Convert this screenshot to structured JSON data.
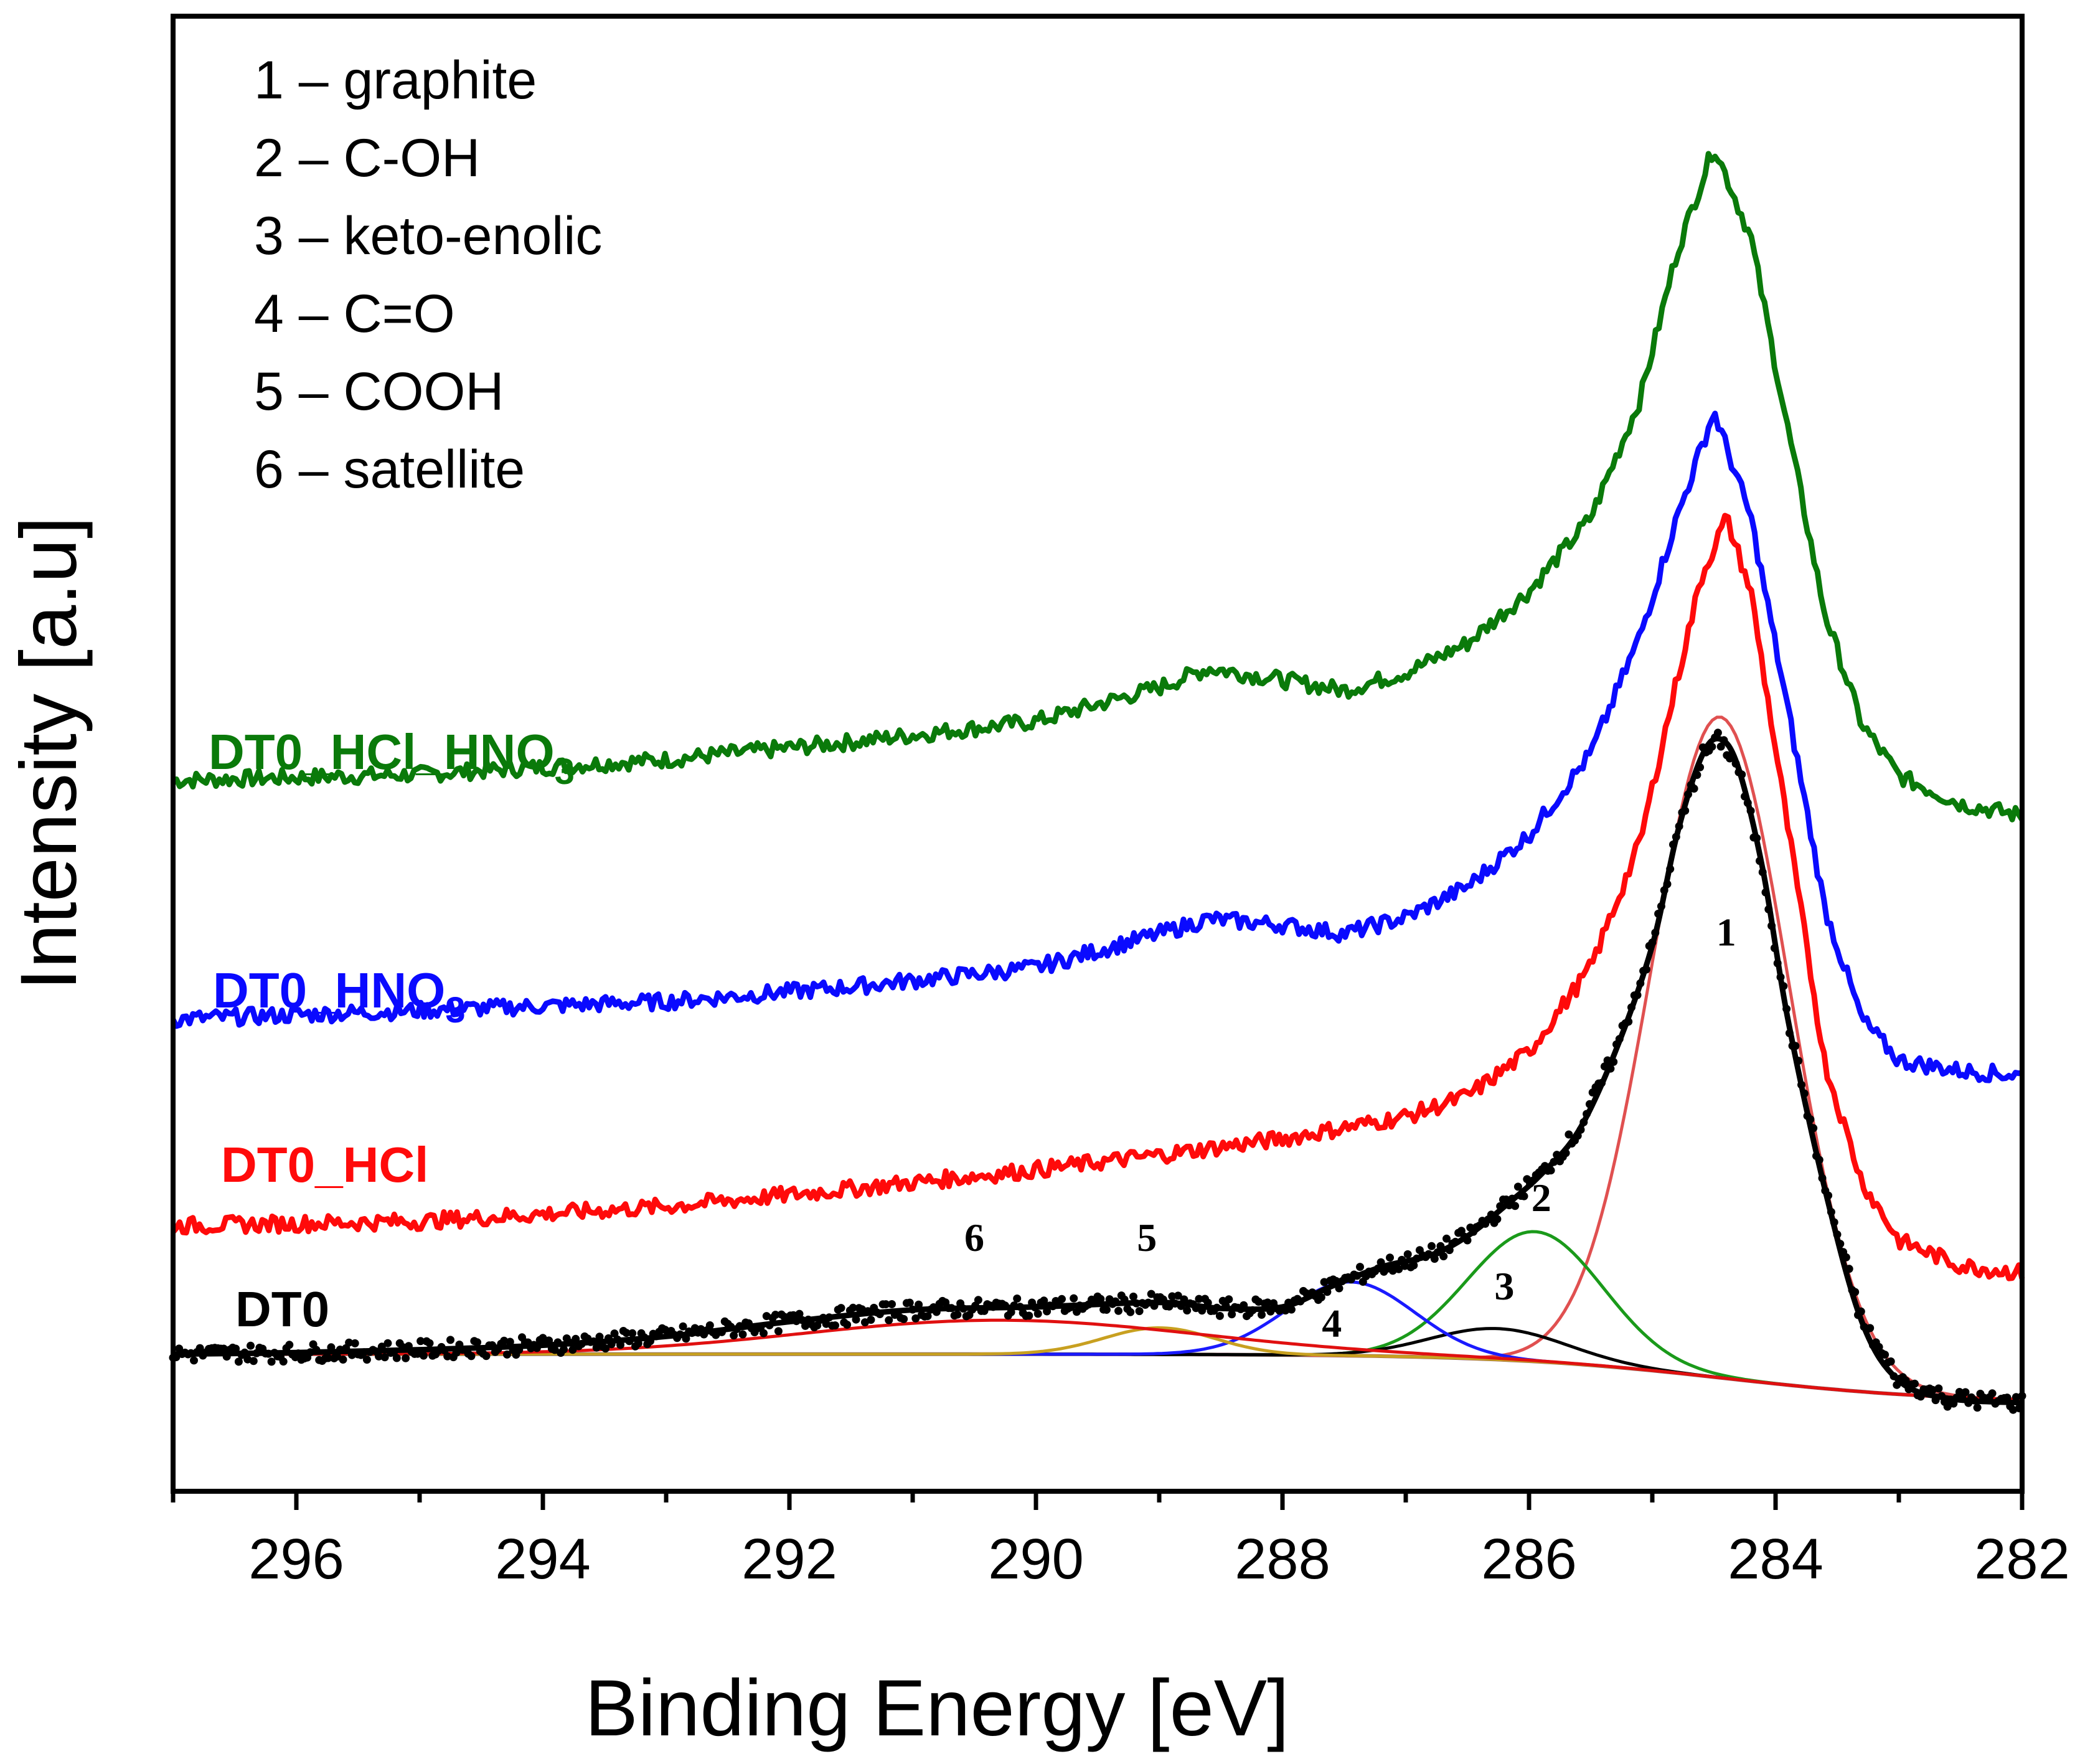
{
  "chart_data": {
    "type": "line",
    "title": "",
    "xlabel": "Binding Energy [eV]",
    "ylabel": "Intensity [a.u]",
    "xlim": [
      297,
      282
    ],
    "ylim": [
      0,
      100
    ],
    "x_reversed": true,
    "x_ticks": [
      "296",
      "294",
      "292",
      "290",
      "288",
      "286",
      "284",
      "282"
    ],
    "x_tick_values": [
      296,
      294,
      292,
      290,
      288,
      286,
      284,
      282
    ],
    "legend_position": "top-left",
    "legend": [
      {
        "num": "1",
        "sep": "–",
        "label": "graphite"
      },
      {
        "num": "2",
        "sep": "–",
        "label": "C-OH"
      },
      {
        "num": "3",
        "sep": "–",
        "label": "keto-enolic"
      },
      {
        "num": "4",
        "sep": "–",
        "label": "C=O"
      },
      {
        "num": "5",
        "sep": "–",
        "label": "COOH"
      },
      {
        "num": "6",
        "sep": "–",
        "label": "satellite"
      }
    ],
    "series": [
      {
        "name": "DT0_HCl_HNO3",
        "label_base": "DT0_HCl_HNO",
        "label_sub": "3",
        "color": "#0a7a0a",
        "points": [
          [
            297,
            48.2
          ],
          [
            295,
            48.6
          ],
          [
            293,
            49.6
          ],
          [
            291.5,
            50.8
          ],
          [
            290,
            52.2
          ],
          [
            289,
            54.5
          ],
          [
            288.6,
            55.8
          ],
          [
            288,
            55.0
          ],
          [
            287.5,
            54.3
          ],
          [
            287,
            55.5
          ],
          [
            286.5,
            57.5
          ],
          [
            286,
            61.0
          ],
          [
            285.5,
            66.0
          ],
          [
            285.1,
            74.0
          ],
          [
            284.8,
            84.0
          ],
          [
            284.5,
            91.2
          ],
          [
            284.2,
            85.0
          ],
          [
            283.9,
            72.0
          ],
          [
            283.6,
            59.5
          ],
          [
            283.3,
            52.0
          ],
          [
            283.0,
            48.5
          ],
          [
            282.5,
            46.6
          ],
          [
            282,
            45.8
          ]
        ]
      },
      {
        "name": "DT0_HNO3",
        "label_base": "DT0_HNO",
        "label_sub": "3",
        "color": "#0a0aff",
        "points": [
          [
            297,
            32.0
          ],
          [
            295,
            32.6
          ],
          [
            293,
            33.2
          ],
          [
            291.5,
            34.2
          ],
          [
            290,
            35.5
          ],
          [
            289,
            37.8
          ],
          [
            288.6,
            38.8
          ],
          [
            288,
            38.4
          ],
          [
            287.5,
            37.8
          ],
          [
            287,
            38.9
          ],
          [
            286.5,
            41.0
          ],
          [
            286,
            44.5
          ],
          [
            285.5,
            50.0
          ],
          [
            285.1,
            58.0
          ],
          [
            284.8,
            66.0
          ],
          [
            284.5,
            73.2
          ],
          [
            284.2,
            66.0
          ],
          [
            283.9,
            53.0
          ],
          [
            283.6,
            39.5
          ],
          [
            283.3,
            32.0
          ],
          [
            283.0,
            29.2
          ],
          [
            282.5,
            28.5
          ],
          [
            282,
            28.2
          ]
        ]
      },
      {
        "name": "DT0_HCl",
        "label_base": "DT0_HCl",
        "label_sub": "",
        "color": "#ff0a0a",
        "points": [
          [
            297,
            18.0
          ],
          [
            295,
            18.3
          ],
          [
            293,
            19.3
          ],
          [
            291.5,
            20.5
          ],
          [
            290,
            21.8
          ],
          [
            289,
            22.8
          ],
          [
            288,
            23.9
          ],
          [
            287,
            25.4
          ],
          [
            286.5,
            26.8
          ],
          [
            286,
            29.8
          ],
          [
            285.5,
            35.5
          ],
          [
            285.1,
            44.0
          ],
          [
            284.8,
            55.0
          ],
          [
            284.6,
            62.0
          ],
          [
            284.4,
            66.0
          ],
          [
            284.2,
            61.0
          ],
          [
            283.9,
            45.0
          ],
          [
            283.6,
            29.0
          ],
          [
            283.3,
            21.0
          ],
          [
            283.0,
            17.0
          ],
          [
            282.5,
            15.3
          ],
          [
            282,
            14.8
          ]
        ]
      },
      {
        "name": "DT0",
        "label_base": "DT0",
        "label_sub": "",
        "color": "#000000",
        "points": [
          [
            297,
            9.3
          ],
          [
            296,
            9.4
          ],
          [
            295,
            9.6
          ],
          [
            294,
            9.9
          ],
          [
            293,
            10.5
          ],
          [
            292,
            11.5
          ],
          [
            291,
            12.3
          ],
          [
            290,
            12.5
          ],
          [
            289,
            12.8
          ],
          [
            288.5,
            12.4
          ],
          [
            288,
            12.5
          ],
          [
            287.6,
            13.9
          ],
          [
            287.2,
            15.2
          ],
          [
            286.8,
            16.0
          ],
          [
            286.5,
            17.3
          ],
          [
            286.2,
            19.3
          ],
          [
            285.9,
            21.5
          ],
          [
            285.6,
            24.4
          ],
          [
            285.3,
            29.8
          ],
          [
            285.0,
            37.0
          ],
          [
            284.8,
            44.5
          ],
          [
            284.6,
            49.8
          ],
          [
            284.45,
            51.0
          ],
          [
            284.3,
            49.0
          ],
          [
            284.1,
            42.0
          ],
          [
            283.9,
            32.0
          ],
          [
            283.6,
            20.5
          ],
          [
            283.3,
            11.5
          ],
          [
            283.0,
            7.5
          ],
          [
            282.6,
            6.3
          ],
          [
            282,
            6.0
          ]
        ]
      }
    ],
    "components": [
      {
        "id": "1",
        "name": "graphite",
        "center": 284.45,
        "height": 44.8,
        "sigma": 0.56,
        "color": "#e05050"
      },
      {
        "id": "2",
        "name": "C-OH",
        "center": 285.95,
        "height": 8.8,
        "sigma": 0.55,
        "color": "#1a9a1a"
      },
      {
        "id": "3",
        "name": "keto-enolic",
        "center": 286.25,
        "height": 2.1,
        "sigma": 0.55,
        "color": "#000000"
      },
      {
        "id": "4",
        "name": "C=O",
        "center": 287.45,
        "height": 5.0,
        "sigma": 0.52,
        "color": "#1a1aff"
      },
      {
        "id": "5",
        "name": "COOH",
        "center": 289.0,
        "height": 1.8,
        "sigma": 0.45,
        "color": "#c8a020"
      },
      {
        "id": "6",
        "name": "satellite",
        "center": 290.3,
        "height": 2.3,
        "sigma": 1.6,
        "color": "#e01010"
      }
    ],
    "background": {
      "color": "#8a5060",
      "left_value": 9.3,
      "right_value": 6.0,
      "step_center": 284.4,
      "step_width": 0.9
    },
    "peak_labels": [
      {
        "text": "1",
        "x": 284.4,
        "y": 37.0
      },
      {
        "text": "2",
        "x": 285.9,
        "y": 19.0
      },
      {
        "text": "3",
        "x": 286.2,
        "y": 13.0
      },
      {
        "text": "4",
        "x": 287.6,
        "y": 10.5
      },
      {
        "text": "5",
        "x": 289.1,
        "y": 16.3
      },
      {
        "text": "6",
        "x": 290.5,
        "y": 16.3
      }
    ]
  }
}
